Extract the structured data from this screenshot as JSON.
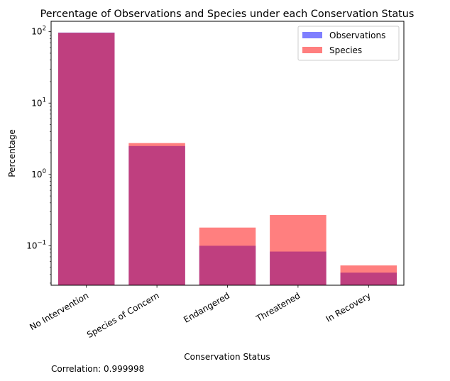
{
  "chart_data": {
    "type": "bar",
    "title": "Percentage of Observations and Species under each Conservation Status",
    "xlabel": "Conservation Status",
    "ylabel": "Percentage",
    "yscale": "log",
    "ylim": [
      0.028,
      140
    ],
    "yticks": [
      {
        "value": 0.1,
        "base": "10",
        "exp": "−1"
      },
      {
        "value": 1,
        "base": "10",
        "exp": "0"
      },
      {
        "value": 10,
        "base": "10",
        "exp": "1"
      },
      {
        "value": 100,
        "base": "10",
        "exp": "2"
      }
    ],
    "categories": [
      "No Intervention",
      "Species of Concern",
      "Endangered",
      "Threatened",
      "In Recovery"
    ],
    "series": [
      {
        "name": "Observations",
        "color": "#0000ff",
        "opacity": 0.5,
        "values": [
          97.3,
          2.5,
          0.1,
          0.083,
          0.042
        ]
      },
      {
        "name": "Species",
        "color": "#ff0000",
        "opacity": 0.5,
        "values": [
          96.7,
          2.75,
          0.18,
          0.27,
          0.053
        ]
      }
    ],
    "legend": "top-right",
    "grid": false
  },
  "annotation": "Correlation: 0.999998"
}
